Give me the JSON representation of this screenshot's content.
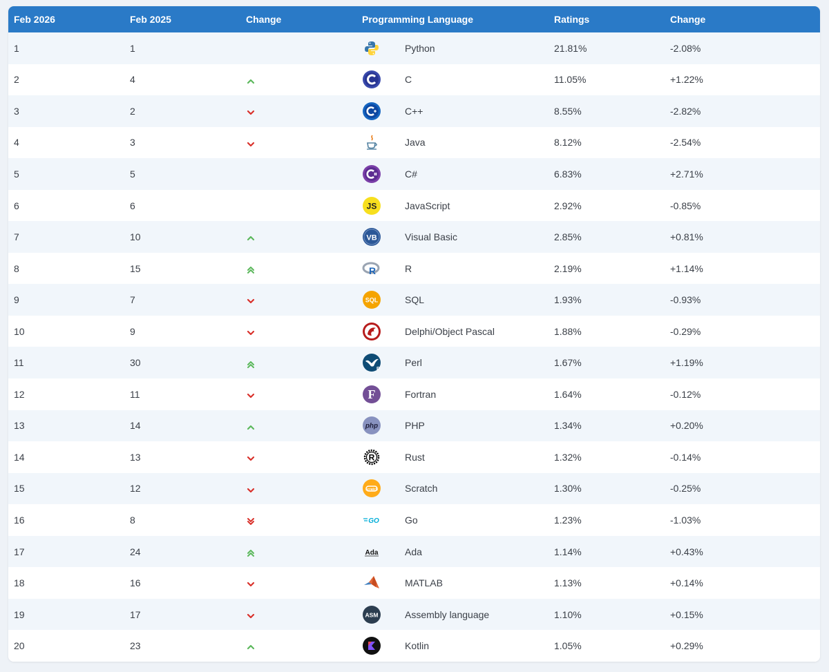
{
  "header": {
    "col1": "Feb 2026",
    "col2": "Feb 2025",
    "col3": "Change",
    "col4": "Programming Language",
    "col5": "Ratings",
    "col6": "Change"
  },
  "colors": {
    "header_bg": "#2a7ac7",
    "up": "#5cb85c",
    "down": "#d9312b"
  },
  "rows": [
    {
      "rank": "1",
      "prev": "1",
      "trend": "none",
      "icon": "python-icon",
      "lang": "Python",
      "rating": "21.81%",
      "change": "-2.08%"
    },
    {
      "rank": "2",
      "prev": "4",
      "trend": "up",
      "icon": "c-icon",
      "lang": "C",
      "rating": "11.05%",
      "change": "+1.22%"
    },
    {
      "rank": "3",
      "prev": "2",
      "trend": "down",
      "icon": "cpp-icon",
      "lang": "C++",
      "rating": "8.55%",
      "change": "-2.82%"
    },
    {
      "rank": "4",
      "prev": "3",
      "trend": "down",
      "icon": "java-icon",
      "lang": "Java",
      "rating": "8.12%",
      "change": "-2.54%"
    },
    {
      "rank": "5",
      "prev": "5",
      "trend": "none",
      "icon": "csharp-icon",
      "lang": "C#",
      "rating": "6.83%",
      "change": "+2.71%"
    },
    {
      "rank": "6",
      "prev": "6",
      "trend": "none",
      "icon": "javascript-icon",
      "lang": "JavaScript",
      "rating": "2.92%",
      "change": "-0.85%"
    },
    {
      "rank": "7",
      "prev": "10",
      "trend": "up",
      "icon": "visual-basic-icon",
      "lang": "Visual Basic",
      "rating": "2.85%",
      "change": "+0.81%"
    },
    {
      "rank": "8",
      "prev": "15",
      "trend": "up2",
      "icon": "r-icon",
      "lang": "R",
      "rating": "2.19%",
      "change": "+1.14%"
    },
    {
      "rank": "9",
      "prev": "7",
      "trend": "down",
      "icon": "sql-icon",
      "lang": "SQL",
      "rating": "1.93%",
      "change": "-0.93%"
    },
    {
      "rank": "10",
      "prev": "9",
      "trend": "down",
      "icon": "delphi-icon",
      "lang": "Delphi/Object Pascal",
      "rating": "1.88%",
      "change": "-0.29%"
    },
    {
      "rank": "11",
      "prev": "30",
      "trend": "up2",
      "icon": "perl-icon",
      "lang": "Perl",
      "rating": "1.67%",
      "change": "+1.19%"
    },
    {
      "rank": "12",
      "prev": "11",
      "trend": "down",
      "icon": "fortran-icon",
      "lang": "Fortran",
      "rating": "1.64%",
      "change": "-0.12%"
    },
    {
      "rank": "13",
      "prev": "14",
      "trend": "up",
      "icon": "php-icon",
      "lang": "PHP",
      "rating": "1.34%",
      "change": "+0.20%"
    },
    {
      "rank": "14",
      "prev": "13",
      "trend": "down",
      "icon": "rust-icon",
      "lang": "Rust",
      "rating": "1.32%",
      "change": "-0.14%"
    },
    {
      "rank": "15",
      "prev": "12",
      "trend": "down",
      "icon": "scratch-icon",
      "lang": "Scratch",
      "rating": "1.30%",
      "change": "-0.25%"
    },
    {
      "rank": "16",
      "prev": "8",
      "trend": "down2",
      "icon": "go-icon",
      "lang": "Go",
      "rating": "1.23%",
      "change": "-1.03%"
    },
    {
      "rank": "17",
      "prev": "24",
      "trend": "up2",
      "icon": "ada-icon",
      "lang": "Ada",
      "rating": "1.14%",
      "change": "+0.43%"
    },
    {
      "rank": "18",
      "prev": "16",
      "trend": "down",
      "icon": "matlab-icon",
      "lang": "MATLAB",
      "rating": "1.13%",
      "change": "+0.14%"
    },
    {
      "rank": "19",
      "prev": "17",
      "trend": "down",
      "icon": "assembly-icon",
      "lang": "Assembly language",
      "rating": "1.10%",
      "change": "+0.15%"
    },
    {
      "rank": "20",
      "prev": "23",
      "trend": "up",
      "icon": "kotlin-icon",
      "lang": "Kotlin",
      "rating": "1.05%",
      "change": "+0.29%"
    }
  ]
}
